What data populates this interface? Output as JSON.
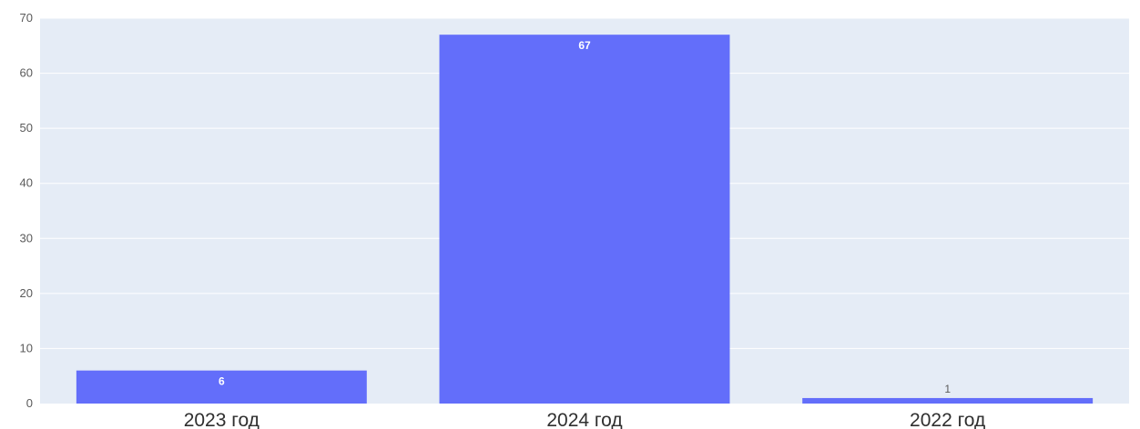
{
  "chart_data": {
    "type": "bar",
    "categories": [
      "2023 год",
      "2024 год",
      "2022 год"
    ],
    "values": [
      6,
      67,
      1
    ],
    "data_labels": [
      "6",
      "67",
      "1"
    ],
    "title": "",
    "xlabel": "",
    "ylabel": "",
    "ylim": [
      0,
      70
    ],
    "yticks": [
      0,
      10,
      20,
      30,
      40,
      50,
      60,
      70
    ],
    "grid": true,
    "legend": "none",
    "colors": {
      "bar": "#636efa",
      "plot_background": "#e5ecf6",
      "grid": "#ffffff"
    }
  }
}
